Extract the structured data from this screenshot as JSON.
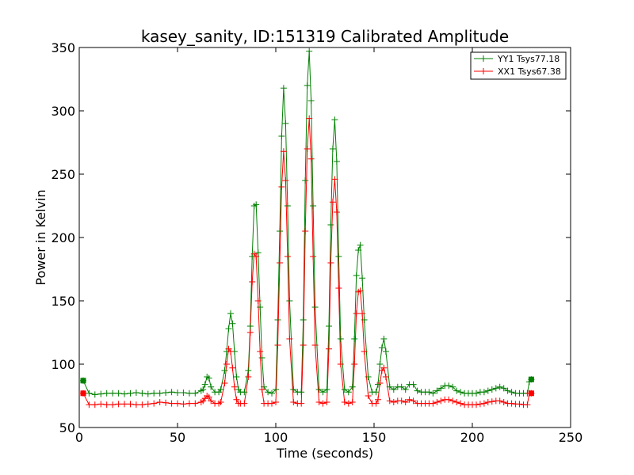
{
  "chart_data": {
    "type": "line",
    "title": "kasey_sanity, ID:151319 Calibrated Amplitude",
    "xlabel": "Time (seconds)",
    "ylabel": "Power in Kelvin",
    "xlim": [
      0,
      250
    ],
    "ylim": [
      50,
      350
    ],
    "xticks": [
      0,
      50,
      100,
      150,
      200,
      250
    ],
    "yticks": [
      50,
      100,
      150,
      200,
      250,
      300,
      350
    ],
    "grid": false,
    "legend_position": "top-right",
    "series": [
      {
        "name": "YY1 Tsys77.18",
        "color": "#008000",
        "marker": "+",
        "x": [
          2,
          5,
          8,
          11,
          14,
          17,
          20,
          23,
          26,
          29,
          32,
          35,
          38,
          41,
          44,
          47,
          50,
          53,
          56,
          59,
          62,
          63,
          64,
          65,
          66,
          67,
          69,
          71,
          72,
          74,
          75,
          76,
          77,
          78,
          79,
          80,
          81,
          82,
          84,
          86,
          87,
          88,
          89,
          90,
          91,
          92,
          93,
          94,
          96,
          98,
          100,
          101,
          102,
          103,
          104,
          105,
          106,
          107,
          109,
          111,
          113,
          114,
          115,
          116,
          117,
          118,
          119,
          120,
          122,
          124,
          126,
          127,
          128,
          129,
          130,
          131,
          132,
          133,
          135,
          137,
          139,
          140,
          141,
          142,
          143,
          144,
          145,
          147,
          149,
          151,
          152,
          153,
          154,
          155,
          156,
          158,
          160,
          162,
          164,
          166,
          168,
          170,
          172,
          174,
          176,
          178,
          180,
          182,
          184,
          186,
          188,
          190,
          192,
          194,
          196,
          198,
          200,
          202,
          204,
          206,
          208,
          210,
          212,
          214,
          216,
          218,
          220,
          222,
          224,
          226,
          228,
          229,
          230
        ],
        "y": [
          87,
          77,
          76,
          76.5,
          77,
          77,
          77,
          76.5,
          77,
          77.5,
          77,
          76.5,
          77,
          77,
          77.5,
          78,
          77.5,
          77.5,
          77,
          77,
          79,
          80,
          84,
          90,
          89,
          82,
          78,
          78,
          80,
          95,
          110,
          128,
          140,
          132,
          110,
          90,
          80,
          78,
          78,
          95,
          130,
          185,
          225,
          226,
          188,
          145,
          105,
          82,
          78,
          77,
          80,
          135,
          205,
          280,
          318,
          290,
          225,
          150,
          80,
          78,
          78,
          135,
          245,
          320,
          347,
          308,
          225,
          145,
          80,
          78,
          80,
          130,
          210,
          270,
          293,
          260,
          185,
          120,
          80,
          78,
          82,
          120,
          170,
          190,
          194,
          168,
          135,
          90,
          78,
          78,
          84,
          100,
          113,
          120,
          110,
          82,
          80,
          82,
          82,
          80,
          84,
          84,
          79,
          78,
          78,
          78,
          77,
          79,
          81,
          83,
          83,
          82,
          79,
          78,
          77,
          77,
          77,
          77,
          78,
          78,
          79,
          80,
          81,
          82,
          81,
          79,
          78,
          77,
          77,
          77,
          77,
          86,
          88
        ]
      },
      {
        "name": "XX1 Tsys67.38",
        "color": "#ff0000",
        "marker": "+",
        "x": [
          2,
          5,
          8,
          11,
          14,
          17,
          20,
          23,
          26,
          29,
          32,
          35,
          38,
          41,
          44,
          47,
          50,
          53,
          56,
          59,
          62,
          63,
          64,
          65,
          66,
          67,
          69,
          71,
          72,
          74,
          75,
          76,
          77,
          78,
          79,
          80,
          81,
          82,
          84,
          86,
          87,
          88,
          89,
          90,
          91,
          92,
          93,
          94,
          96,
          98,
          100,
          101,
          102,
          103,
          104,
          105,
          106,
          107,
          109,
          111,
          113,
          114,
          115,
          116,
          117,
          118,
          119,
          120,
          122,
          124,
          126,
          127,
          128,
          129,
          130,
          131,
          132,
          133,
          135,
          137,
          139,
          140,
          141,
          142,
          143,
          144,
          145,
          147,
          149,
          151,
          152,
          153,
          154,
          155,
          156,
          158,
          160,
          162,
          164,
          166,
          168,
          170,
          172,
          174,
          176,
          178,
          180,
          182,
          184,
          186,
          188,
          190,
          192,
          194,
          196,
          198,
          200,
          202,
          204,
          206,
          208,
          210,
          212,
          214,
          216,
          218,
          220,
          222,
          224,
          226,
          228,
          229,
          230
        ],
        "y": [
          77,
          68,
          68,
          68.5,
          68,
          68,
          68.5,
          68.5,
          68.5,
          68,
          68,
          68.5,
          69,
          70,
          69.5,
          69,
          69,
          68.5,
          69,
          69,
          70,
          71,
          73,
          75,
          74,
          71,
          69,
          69,
          70,
          85,
          100,
          112,
          110,
          97,
          82,
          72,
          69,
          69,
          69,
          90,
          125,
          165,
          187,
          185,
          150,
          110,
          80,
          69,
          69,
          69,
          70,
          115,
          180,
          240,
          268,
          245,
          185,
          120,
          70,
          69,
          69,
          115,
          205,
          270,
          294,
          262,
          185,
          115,
          70,
          69,
          70,
          112,
          180,
          228,
          246,
          220,
          160,
          100,
          70,
          69,
          70,
          100,
          140,
          157,
          158,
          140,
          110,
          75,
          69,
          69,
          72,
          85,
          95,
          97,
          90,
          71,
          70,
          71,
          71,
          70,
          72,
          71,
          69,
          69,
          69,
          69,
          69,
          70,
          71,
          72,
          72,
          71,
          70,
          69,
          68,
          68,
          68,
          68,
          68.5,
          69,
          70,
          70.5,
          71,
          71,
          70,
          69,
          69,
          68.5,
          68.5,
          68,
          68,
          77,
          77
        ]
      }
    ]
  }
}
